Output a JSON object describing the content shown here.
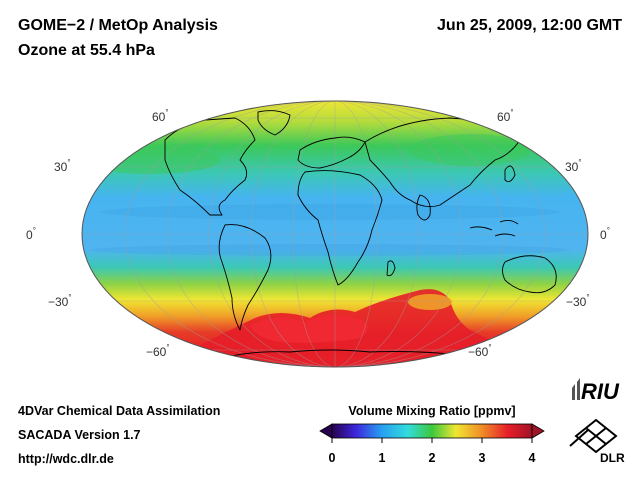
{
  "header": {
    "title_line1": "GOME−2 / MetOp Analysis",
    "title_line2": "Ozone at 55.4 hPa",
    "datetime": "Jun 25, 2009, 12:00 GMT"
  },
  "map": {
    "projection": "Mollweide",
    "latitude_labels_left": [
      "60",
      "30",
      "0",
      "−30",
      "−60"
    ],
    "latitude_labels_right": [
      "60",
      "30",
      "0",
      "−30",
      "−60"
    ],
    "degree_symbol": "°"
  },
  "colorbar": {
    "title": "Volume Mixing Ratio [ppmv]",
    "ticks": [
      "0",
      "1",
      "2",
      "3",
      "4"
    ],
    "range": [
      0,
      4
    ]
  },
  "footer": {
    "line1": "4DVar Chemical Data Assimilation",
    "line2": "SACADA Version 1.7",
    "line3": "http://wdc.dlr.de"
  },
  "logos": {
    "riu": "RIU",
    "dlr": "DLR"
  },
  "colors": {
    "blue_low": "#46b4f0",
    "green": "#3cc83c",
    "yellow": "#f0e632",
    "orange": "#f08c28",
    "red": "#e61e28"
  }
}
